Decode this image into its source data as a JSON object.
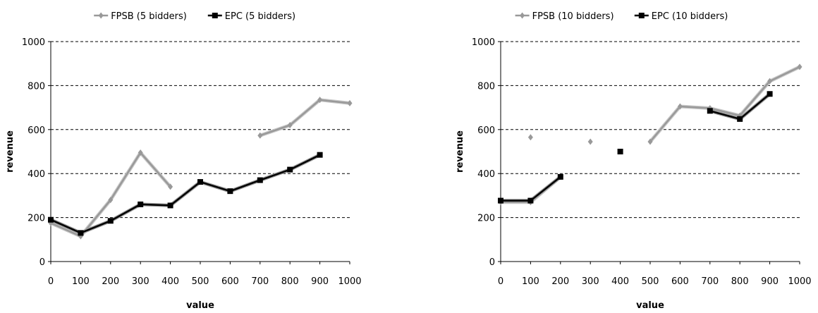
{
  "chart_data": [
    {
      "type": "line",
      "xlabel": "value",
      "ylabel": "revenue",
      "xlim": [
        0,
        1000
      ],
      "ylim": [
        0,
        1000
      ],
      "x_ticks": [
        "0",
        "100",
        "200",
        "300",
        "400",
        "500",
        "600",
        "700",
        "800",
        "900",
        "1000"
      ],
      "y_ticks": [
        "0",
        "200",
        "400",
        "600",
        "800",
        "1000"
      ],
      "grid": "horizontal dashed",
      "legend_position": "top",
      "series": [
        {
          "name": "FPSB (5 bidders)",
          "color": "#999999",
          "marker": "diamond",
          "points": [
            [
              0,
              175
            ],
            [
              100,
              115
            ],
            [
              200,
              280
            ],
            [
              300,
              495
            ],
            [
              400,
              340
            ],
            [
              700,
              573
            ],
            [
              800,
              620
            ],
            [
              900,
              735
            ],
            [
              1000,
              720
            ]
          ],
          "segments": [
            [
              0,
              1,
              2,
              3,
              4
            ],
            [
              5,
              6,
              7,
              8
            ]
          ]
        },
        {
          "name": "EPC (5 bidders)",
          "color": "#000000",
          "marker": "square",
          "points": [
            [
              0,
              190
            ],
            [
              100,
              130
            ],
            [
              200,
              185
            ],
            [
              300,
              260
            ],
            [
              400,
              255
            ],
            [
              500,
              362
            ],
            [
              600,
              320
            ],
            [
              700,
              370
            ],
            [
              800,
              418
            ],
            [
              900,
              485
            ]
          ],
          "segments": [
            [
              0,
              1,
              2,
              3,
              4,
              5,
              6,
              7,
              8,
              9
            ]
          ]
        }
      ]
    },
    {
      "type": "line",
      "xlabel": "value",
      "ylabel": "revenue",
      "xlim": [
        0,
        1000
      ],
      "ylim": [
        0,
        1000
      ],
      "x_ticks": [
        "0",
        "100",
        "200",
        "300",
        "400",
        "500",
        "600",
        "700",
        "800",
        "900",
        "1000"
      ],
      "y_ticks": [
        "0",
        "200",
        "400",
        "600",
        "800",
        "1000"
      ],
      "grid": "horizontal dashed",
      "legend_position": "top",
      "series": [
        {
          "name": "FPSB (10 bidders)",
          "color": "#999999",
          "marker": "diamond",
          "points": [
            [
              0,
              270
            ],
            [
              100,
              270
            ],
            [
              200,
              385
            ],
            [
              100,
              565
            ],
            [
              300,
              545
            ],
            [
              500,
              545
            ],
            [
              600,
              705
            ],
            [
              700,
              697
            ],
            [
              800,
              663
            ],
            [
              900,
              820
            ],
            [
              1000,
              885
            ]
          ],
          "segments": [
            [
              0,
              1,
              2
            ],
            [
              3
            ],
            [
              4
            ],
            [
              5,
              6,
              7,
              8,
              9,
              10
            ]
          ]
        },
        {
          "name": "EPC (10 bidders)",
          "color": "#000000",
          "marker": "square",
          "points": [
            [
              0,
              277
            ],
            [
              100,
              277
            ],
            [
              200,
              385
            ],
            [
              400,
              500
            ],
            [
              700,
              685
            ],
            [
              800,
              648
            ],
            [
              900,
              762
            ]
          ],
          "segments": [
            [
              0,
              1,
              2
            ],
            [
              3
            ],
            [
              4,
              5,
              6
            ]
          ]
        }
      ]
    }
  ]
}
